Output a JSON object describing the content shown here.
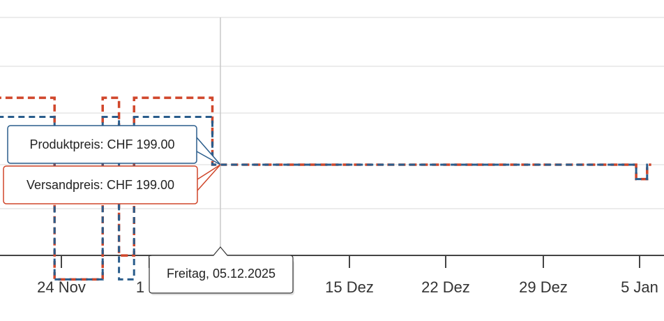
{
  "chart_data": {
    "type": "line",
    "x_ticks": [
      "24 Nov",
      "1",
      "15 Dez",
      "22 Dez",
      "29 Dez",
      "5 Jan"
    ],
    "series": [
      {
        "name": "Produktpreis",
        "color": "#2a5d8c",
        "step": true,
        "points": [
          [
            "2025-11-14",
            209
          ],
          [
            "2025-11-23",
            209
          ],
          [
            "2025-11-23.5",
            175
          ],
          [
            "2025-11-27",
            175
          ],
          [
            "2025-11-27.01",
            209
          ],
          [
            "2025-11-28",
            209
          ],
          [
            "2025-11-28.2",
            175
          ],
          [
            "2025-11-29.1",
            175
          ],
          [
            "2025-11-29.3",
            209
          ],
          [
            "2025-12-05",
            209
          ],
          [
            "2025-12-05.01",
            199
          ],
          [
            "2026-01-04.9",
            199
          ],
          [
            "2026-01-04.9",
            196
          ],
          [
            "2026-01-05.7",
            196
          ],
          [
            "2026-01-05.7",
            199
          ],
          [
            "2026-01-06",
            199
          ]
        ]
      },
      {
        "name": "Versandpreis",
        "color": "#d0462a",
        "step": true,
        "points": [
          [
            "2025-11-14",
            209
          ],
          [
            "2025-11-15",
            213
          ],
          [
            "2025-11-23",
            213
          ],
          [
            "2025-11-23.5",
            175
          ],
          [
            "2025-11-27",
            175
          ],
          [
            "2025-11-27.01",
            213
          ],
          [
            "2025-11-28",
            213
          ],
          [
            "2025-11-28.2",
            180
          ],
          [
            "2025-11-29.1",
            180
          ],
          [
            "2025-11-29.3",
            213
          ],
          [
            "2025-12-05",
            213
          ],
          [
            "2025-12-05.01",
            199
          ],
          [
            "2026-01-04.9",
            199
          ],
          [
            "2026-01-04.9",
            196
          ],
          [
            "2026-01-05.7",
            196
          ],
          [
            "2026-01-05.7",
            199
          ],
          [
            "2026-01-06",
            199
          ]
        ]
      }
    ],
    "grid": true,
    "tooltip": {
      "date_label": "Freitag, 05.12.2025",
      "items": [
        {
          "label": "Produktpreis: CHF 199.00",
          "color": "#2a5d8c"
        },
        {
          "label": "Versandpreis: CHF 199.00",
          "color": "#d0462a"
        }
      ]
    }
  }
}
